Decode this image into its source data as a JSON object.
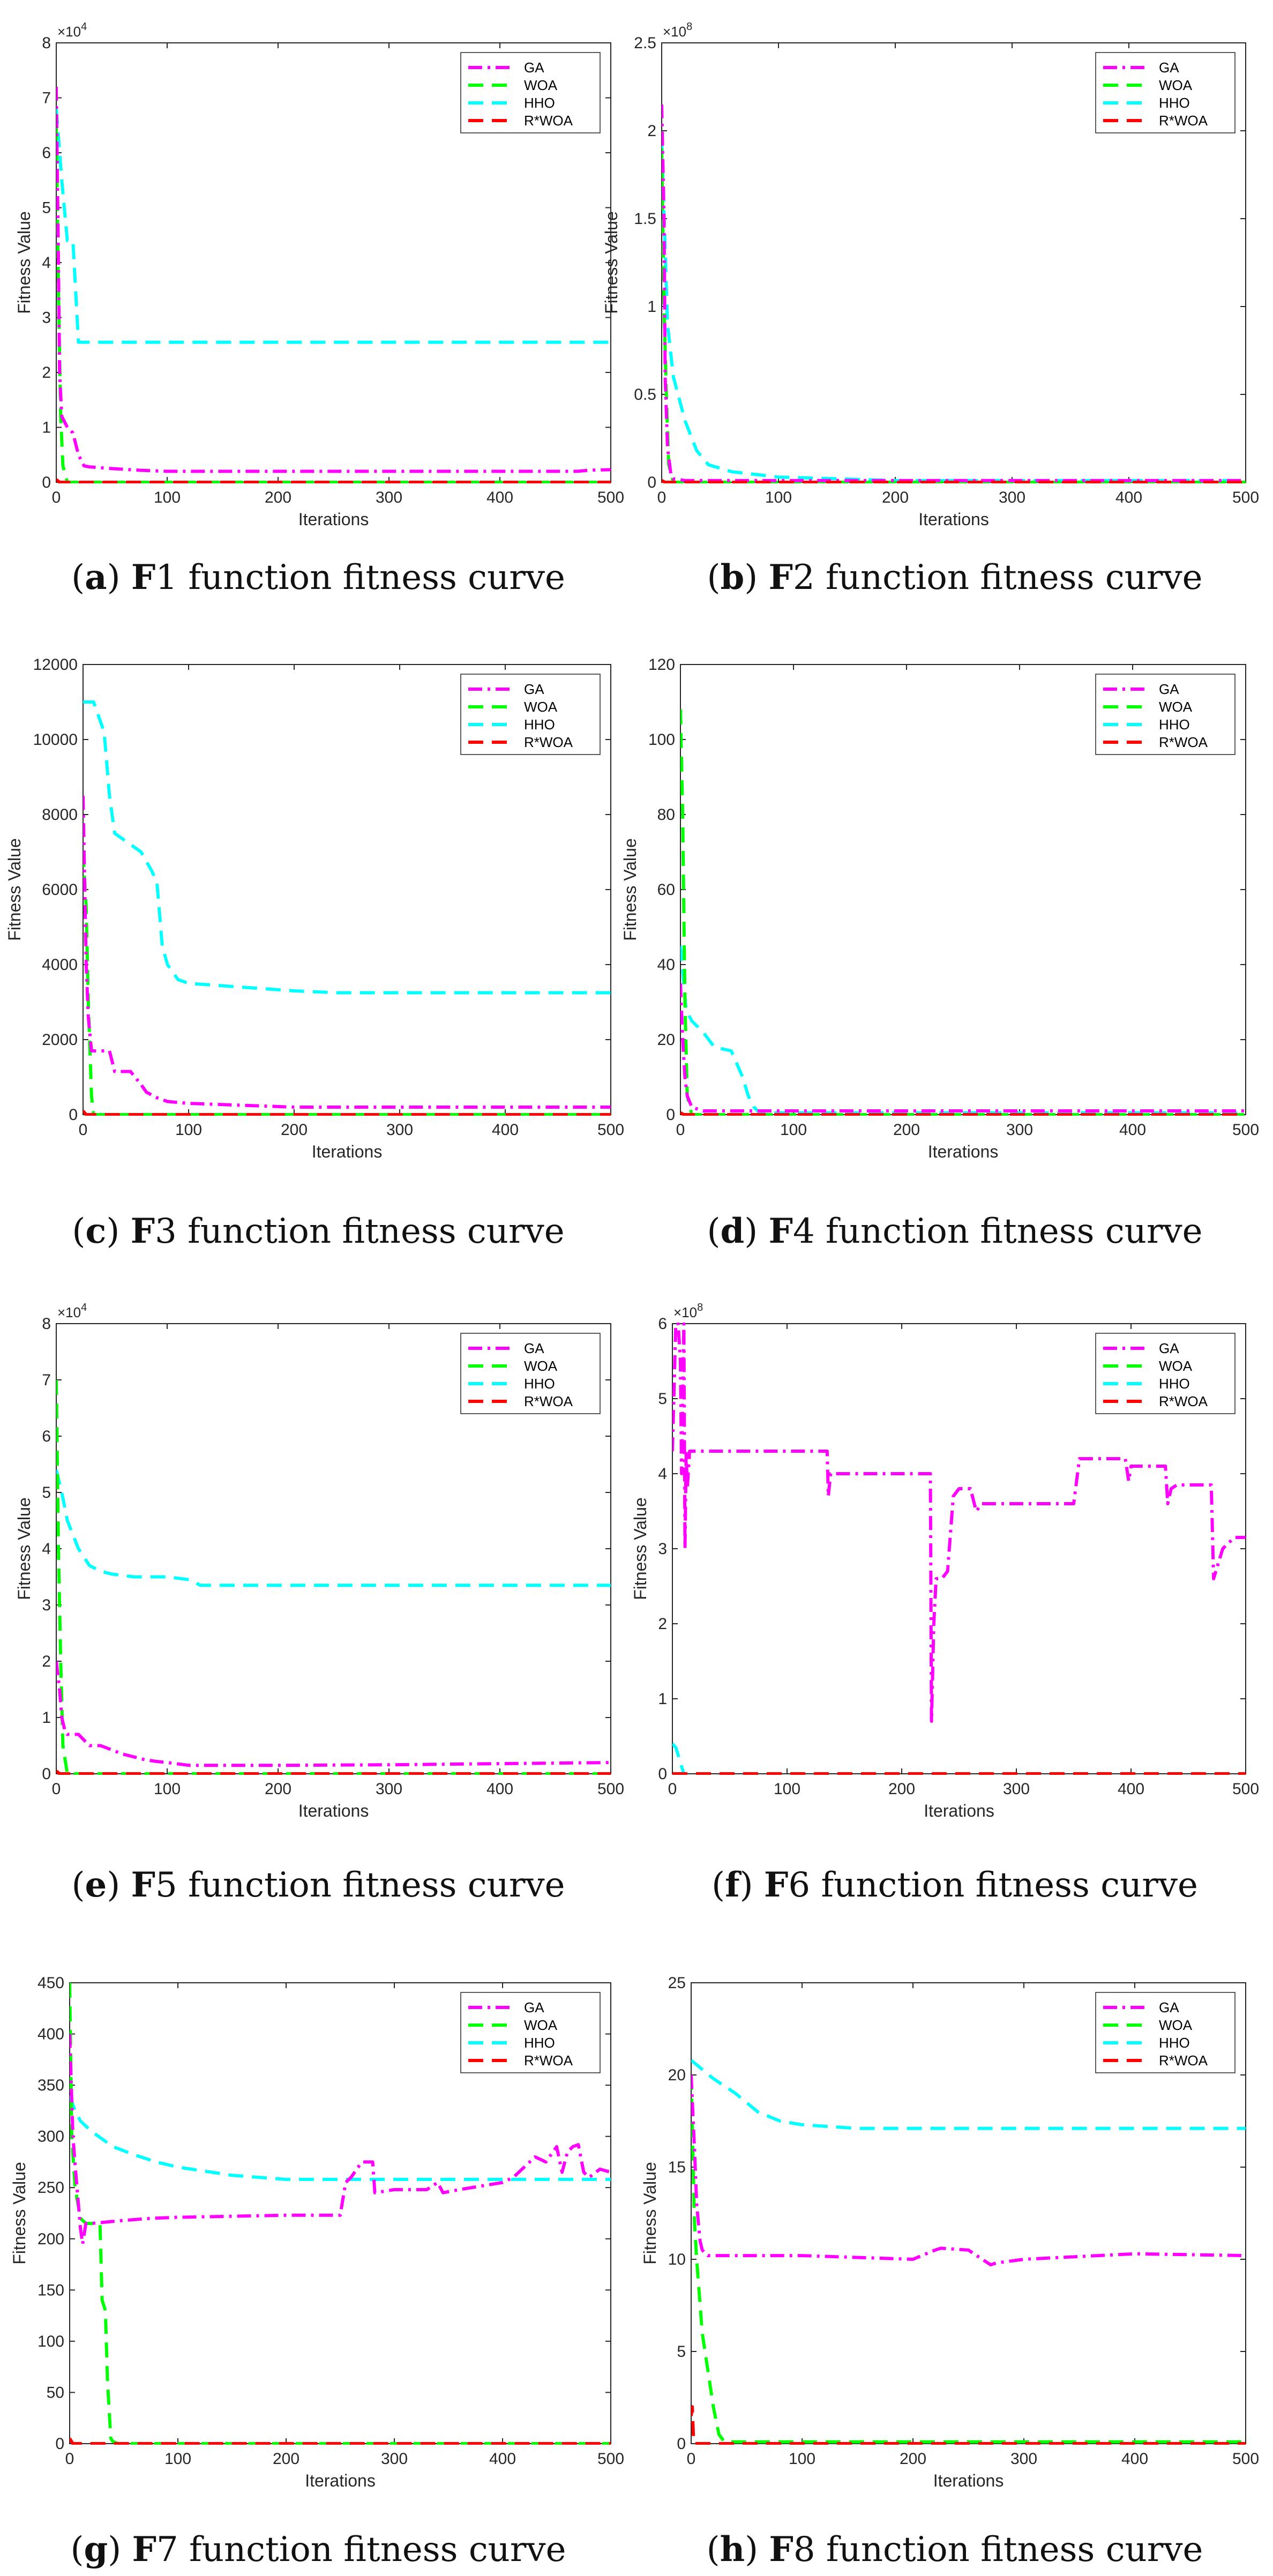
{
  "colors": {
    "GA": "#ff00ff",
    "WOA": "#00ff00",
    "HHO": "#00ffff",
    "R*WOA": "#ff0000"
  },
  "chart_data": [
    {
      "type": "line",
      "panel": "a",
      "xlabel": "Iterations",
      "ylabel": "Fitness Value",
      "xlim": [
        0,
        500
      ],
      "ylim": [
        0,
        8
      ],
      "y_multiplier": "×10^4",
      "grid": false,
      "legend": "top-right",
      "xticks": [
        0,
        100,
        200,
        300,
        400,
        500
      ],
      "yticks": [
        0,
        1,
        2,
        3,
        4,
        5,
        6,
        7,
        8
      ],
      "series": [
        {
          "name": "GA",
          "x": [
            0,
            2,
            3,
            5,
            10,
            15,
            20,
            25,
            30,
            50,
            75,
            100,
            200,
            300,
            400,
            470,
            480,
            500
          ],
          "y": [
            7.2,
            4,
            2,
            1.2,
            1.0,
            0.9,
            0.5,
            0.3,
            0.28,
            0.25,
            0.22,
            0.2,
            0.2,
            0.2,
            0.2,
            0.2,
            0.22,
            0.23
          ]
        },
        {
          "name": "WOA",
          "x": [
            0,
            2,
            4,
            6,
            10,
            500
          ],
          "y": [
            6.5,
            3.5,
            1.2,
            0.3,
            0,
            0
          ]
        },
        {
          "name": "HHO",
          "x": [
            0,
            5,
            10,
            15,
            20,
            25,
            30,
            500
          ],
          "y": [
            6.8,
            5.5,
            4.4,
            4.4,
            2.55,
            2.55,
            2.55,
            2.55
          ]
        },
        {
          "name": "R*WOA",
          "x": [
            0,
            3,
            500
          ],
          "y": [
            0.05,
            0,
            0
          ]
        }
      ]
    },
    {
      "type": "line",
      "panel": "b",
      "xlabel": "Iterations",
      "ylabel": "Fitness Value",
      "xlim": [
        0,
        500
      ],
      "ylim": [
        0,
        2.5
      ],
      "y_multiplier": "×10^8",
      "grid": false,
      "legend": "top-right",
      "xticks": [
        0,
        100,
        200,
        300,
        400,
        500
      ],
      "yticks": [
        0,
        0.5,
        1,
        1.5,
        2,
        2.5
      ],
      "series": [
        {
          "name": "GA",
          "x": [
            0,
            2,
            3,
            5,
            8,
            10,
            20,
            500
          ],
          "y": [
            2.15,
            1.5,
            0.6,
            0.2,
            0.04,
            0.02,
            0.01,
            0.01
          ]
        },
        {
          "name": "WOA",
          "x": [
            0,
            2,
            4,
            6,
            10,
            500
          ],
          "y": [
            1.9,
            1.0,
            0.5,
            0.1,
            0,
            0
          ]
        },
        {
          "name": "HHO",
          "x": [
            0,
            5,
            10,
            20,
            30,
            40,
            60,
            100,
            150,
            200,
            500
          ],
          "y": [
            1.95,
            0.9,
            0.6,
            0.35,
            0.18,
            0.1,
            0.06,
            0.03,
            0.02,
            0.01,
            0.01
          ]
        },
        {
          "name": "R*WOA",
          "x": [
            0,
            3,
            500
          ],
          "y": [
            0.01,
            0,
            0
          ]
        }
      ]
    },
    {
      "type": "line",
      "panel": "c",
      "xlabel": "Iterations",
      "ylabel": "Fitness Value",
      "xlim": [
        0,
        500
      ],
      "ylim": [
        0,
        12000
      ],
      "grid": false,
      "legend": "top-right",
      "xticks": [
        0,
        100,
        200,
        300,
        400,
        500
      ],
      "yticks": [
        0,
        2000,
        4000,
        6000,
        8000,
        10000,
        12000
      ],
      "series": [
        {
          "name": "GA",
          "x": [
            0,
            3,
            5,
            8,
            10,
            25,
            30,
            45,
            55,
            60,
            70,
            80,
            100,
            150,
            200,
            300,
            400,
            500
          ],
          "y": [
            8500,
            4000,
            2600,
            1700,
            1700,
            1700,
            1150,
            1150,
            800,
            600,
            450,
            350,
            300,
            250,
            200,
            200,
            200,
            200
          ]
        },
        {
          "name": "WOA",
          "x": [
            0,
            3,
            5,
            8,
            10,
            500
          ],
          "y": [
            7000,
            5500,
            3000,
            500,
            0,
            0
          ]
        },
        {
          "name": "HHO",
          "x": [
            0,
            10,
            20,
            25,
            30,
            40,
            55,
            65,
            70,
            75,
            80,
            90,
            100,
            150,
            200,
            240,
            300,
            500
          ],
          "y": [
            11000,
            11000,
            10200,
            8500,
            7500,
            7300,
            7000,
            6500,
            6200,
            4500,
            4000,
            3600,
            3500,
            3400,
            3300,
            3250,
            3250,
            3250
          ]
        },
        {
          "name": "R*WOA",
          "x": [
            0,
            3,
            500
          ],
          "y": [
            100,
            0,
            0
          ]
        }
      ]
    },
    {
      "type": "line",
      "panel": "d",
      "xlabel": "Iterations",
      "ylabel": "Fitness Value",
      "xlim": [
        0,
        500
      ],
      "ylim": [
        0,
        120
      ],
      "grid": false,
      "legend": "top-right",
      "xticks": [
        0,
        100,
        200,
        300,
        400,
        500
      ],
      "yticks": [
        0,
        20,
        40,
        60,
        80,
        100,
        120
      ],
      "series": [
        {
          "name": "GA",
          "x": [
            0,
            2,
            4,
            6,
            10,
            20,
            500
          ],
          "y": [
            35,
            20,
            10,
            5,
            2,
            1,
            1
          ]
        },
        {
          "name": "WOA",
          "x": [
            0,
            2,
            4,
            6,
            10,
            500
          ],
          "y": [
            108,
            80,
            30,
            5,
            0,
            0
          ]
        },
        {
          "name": "HHO",
          "x": [
            0,
            5,
            10,
            20,
            30,
            45,
            55,
            60,
            65,
            70,
            500
          ],
          "y": [
            45,
            28,
            25,
            22,
            18,
            17,
            10,
            5,
            2,
            0.5,
            0.5
          ]
        },
        {
          "name": "R*WOA",
          "x": [
            0,
            3,
            500
          ],
          "y": [
            0.5,
            0,
            0
          ]
        }
      ]
    },
    {
      "type": "line",
      "panel": "e",
      "xlabel": "Iterations",
      "ylabel": "Fitness Value",
      "xlim": [
        0,
        500
      ],
      "ylim": [
        0,
        8
      ],
      "y_multiplier": "×10^4",
      "grid": false,
      "legend": "top-right",
      "xticks": [
        0,
        100,
        200,
        300,
        400,
        500
      ],
      "yticks": [
        0,
        1,
        2,
        3,
        4,
        5,
        6,
        7,
        8
      ],
      "series": [
        {
          "name": "GA",
          "x": [
            0,
            3,
            5,
            8,
            10,
            20,
            30,
            40,
            60,
            70,
            80,
            90,
            100,
            120,
            200,
            300,
            400,
            500
          ],
          "y": [
            2.0,
            1.5,
            1.0,
            0.75,
            0.7,
            0.7,
            0.5,
            0.5,
            0.35,
            0.3,
            0.25,
            0.22,
            0.2,
            0.15,
            0.15,
            0.16,
            0.18,
            0.2
          ]
        },
        {
          "name": "WOA",
          "x": [
            0,
            2,
            4,
            6,
            10,
            500
          ],
          "y": [
            7.0,
            4.0,
            2.0,
            0.5,
            0,
            0
          ]
        },
        {
          "name": "HHO",
          "x": [
            0,
            5,
            10,
            20,
            30,
            40,
            50,
            70,
            100,
            120,
            130,
            200,
            300,
            500
          ],
          "y": [
            5.4,
            5.0,
            4.5,
            4.0,
            3.7,
            3.6,
            3.55,
            3.5,
            3.5,
            3.45,
            3.35,
            3.35,
            3.35,
            3.35
          ]
        },
        {
          "name": "R*WOA",
          "x": [
            0,
            3,
            500
          ],
          "y": [
            0.05,
            0,
            0
          ]
        }
      ]
    },
    {
      "type": "line",
      "panel": "f",
      "xlabel": "Iterations",
      "ylabel": "Fitness Value",
      "xlim": [
        0,
        500
      ],
      "ylim": [
        0,
        6
      ],
      "y_multiplier": "×10^8",
      "grid": false,
      "legend": "top-right",
      "xticks": [
        0,
        100,
        200,
        300,
        400,
        500
      ],
      "yticks": [
        0,
        1,
        2,
        3,
        4,
        5,
        6
      ],
      "series": [
        {
          "name": "GA",
          "x": [
            0,
            3,
            5,
            7,
            8,
            10,
            11,
            12,
            13,
            15,
            20,
            60,
            100,
            135,
            136,
            138,
            140,
            200,
            225,
            226,
            228,
            230,
            235,
            240,
            245,
            250,
            260,
            265,
            270,
            300,
            350,
            355,
            395,
            398,
            400,
            430,
            432,
            435,
            440,
            460,
            470,
            472,
            480,
            490,
            500
          ],
          "y": [
            4.3,
            6.0,
            6.0,
            5.5,
            4.0,
            6.0,
            3.0,
            4.3,
            3.8,
            4.3,
            4.3,
            4.3,
            4.3,
            4.3,
            3.7,
            4.0,
            4.0,
            4.0,
            4.0,
            0.7,
            2.0,
            2.6,
            2.6,
            2.7,
            3.7,
            3.8,
            3.8,
            3.5,
            3.6,
            3.6,
            3.6,
            4.2,
            4.2,
            3.9,
            4.1,
            4.1,
            3.6,
            3.8,
            3.85,
            3.85,
            3.85,
            2.6,
            3.0,
            3.15,
            3.15
          ]
        },
        {
          "name": "WOA",
          "x": [
            0,
            500
          ],
          "y": [
            0,
            0
          ]
        },
        {
          "name": "HHO",
          "x": [
            0,
            3,
            5,
            8,
            10
          ],
          "y": [
            0.4,
            0.35,
            0.25,
            0.1,
            0
          ]
        },
        {
          "name": "R*WOA",
          "x": [
            0,
            500
          ],
          "y": [
            0,
            0
          ]
        }
      ]
    },
    {
      "type": "line",
      "panel": "g",
      "xlabel": "Iterations",
      "ylabel": "Fitness Value",
      "xlim": [
        0,
        500
      ],
      "ylim": [
        0,
        450
      ],
      "grid": false,
      "legend": "top-right",
      "xticks": [
        0,
        100,
        200,
        300,
        400,
        500
      ],
      "yticks": [
        0,
        50,
        100,
        150,
        200,
        250,
        300,
        350,
        400,
        450
      ],
      "series": [
        {
          "name": "GA",
          "x": [
            0,
            3,
            6,
            10,
            12,
            15,
            20,
            50,
            75,
            100,
            150,
            200,
            250,
            255,
            260,
            270,
            280,
            282,
            300,
            330,
            340,
            345,
            360,
            400,
            410,
            420,
            430,
            440,
            450,
            455,
            460,
            465,
            470,
            475,
            480,
            490,
            500
          ],
          "y": [
            400,
            300,
            260,
            210,
            195,
            215,
            215,
            218,
            220,
            221,
            222,
            223,
            223,
            255,
            260,
            275,
            275,
            245,
            248,
            248,
            255,
            245,
            248,
            255,
            260,
            270,
            280,
            275,
            290,
            265,
            285,
            290,
            292,
            265,
            260,
            268,
            265
          ]
        },
        {
          "name": "WOA",
          "x": [
            0,
            2,
            5,
            10,
            15,
            20,
            25,
            28,
            30,
            33,
            35,
            38,
            40,
            45,
            500
          ],
          "y": [
            450,
            300,
            250,
            220,
            215,
            215,
            215,
            215,
            140,
            130,
            60,
            5,
            2,
            0,
            0
          ]
        },
        {
          "name": "HHO",
          "x": [
            0,
            5,
            10,
            20,
            40,
            60,
            80,
            100,
            150,
            200,
            300,
            400,
            500
          ],
          "y": [
            340,
            325,
            315,
            305,
            290,
            282,
            275,
            270,
            262,
            258,
            258,
            258,
            258
          ]
        },
        {
          "name": "R*WOA",
          "x": [
            0,
            3,
            500
          ],
          "y": [
            5,
            0,
            0
          ]
        }
      ]
    },
    {
      "type": "line",
      "panel": "h",
      "xlabel": "Iterations",
      "ylabel": "Fitness Value",
      "xlim": [
        0,
        500
      ],
      "ylim": [
        0,
        25
      ],
      "grid": false,
      "legend": "top-right",
      "xticks": [
        0,
        100,
        200,
        300,
        400,
        500
      ],
      "yticks": [
        0,
        5,
        10,
        15,
        20,
        25
      ],
      "series": [
        {
          "name": "GA",
          "x": [
            0,
            3,
            5,
            8,
            10,
            15,
            20,
            50,
            100,
            200,
            220,
            225,
            250,
            270,
            275,
            300,
            400,
            500
          ],
          "y": [
            20,
            16,
            13,
            11,
            10.5,
            10.2,
            10.2,
            10.2,
            10.2,
            10.0,
            10.5,
            10.6,
            10.5,
            9.7,
            9.8,
            10.0,
            10.3,
            10.2
          ]
        },
        {
          "name": "WOA",
          "x": [
            0,
            3,
            5,
            10,
            15,
            20,
            25,
            30,
            500
          ],
          "y": [
            20,
            12,
            10,
            6,
            4,
            2,
            0.5,
            0.1,
            0.1
          ]
        },
        {
          "name": "HHO",
          "x": [
            0,
            10,
            20,
            40,
            60,
            80,
            100,
            150,
            200,
            300,
            400,
            500
          ],
          "y": [
            20.8,
            20.3,
            19.8,
            19.0,
            18.0,
            17.5,
            17.3,
            17.1,
            17.1,
            17.1,
            17.1,
            17.1
          ]
        },
        {
          "name": "R*WOA",
          "x": [
            0,
            1,
            2,
            3,
            500
          ],
          "y": [
            1.5,
            2.0,
            0.5,
            0,
            0
          ]
        }
      ]
    }
  ],
  "captions": [
    {
      "letter": "a",
      "func": "F1",
      "text": "function fitness curve"
    },
    {
      "letter": "b",
      "func": "F2",
      "text": "function fitness curve"
    },
    {
      "letter": "c",
      "func": "F3",
      "text": "function fitness curve"
    },
    {
      "letter": "d",
      "func": "F4",
      "text": "function fitness curve"
    },
    {
      "letter": "e",
      "func": "F5",
      "text": "function fitness curve"
    },
    {
      "letter": "f",
      "func": "F6",
      "text": "function fitness curve"
    },
    {
      "letter": "g",
      "func": "F7",
      "text": "function fitness curve"
    },
    {
      "letter": "h",
      "func": "F8",
      "text": "function fitness curve"
    }
  ]
}
